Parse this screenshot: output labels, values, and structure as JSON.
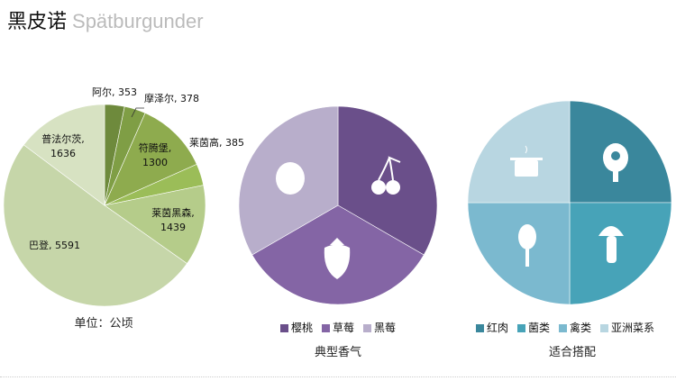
{
  "title": {
    "main": "黑皮诺",
    "sub": "Spätburgunder"
  },
  "chart_data": [
    {
      "type": "pie",
      "caption": "单位：公顷",
      "categories": [
        "阿尔",
        "摩泽尔",
        "符腾堡",
        "莱茵高",
        "莱茵黑森",
        "巴登",
        "普法尔茨"
      ],
      "values": [
        353,
        378,
        1300,
        385,
        1439,
        5591,
        1636
      ],
      "colors": [
        "#6e8a3c",
        "#7f9e45",
        "#8eab4e",
        "#9bbd58",
        "#b5cc8a",
        "#c6d6a9",
        "#d7e2c2"
      ],
      "labels": [
        "阿尔, 353",
        "摩泽尔, 378",
        "符腾堡,\n1300",
        "莱茵高, 385",
        "莱茵黑森,\n1439",
        "巴登, 5591",
        "普法尔茨,\n1636"
      ]
    },
    {
      "type": "pie",
      "caption": "典型香气",
      "categories": [
        "樱桃",
        "草莓",
        "黑莓"
      ],
      "values": [
        1,
        1,
        1
      ],
      "colors": [
        "#6a4f8a",
        "#8465a5",
        "#b8aecb"
      ],
      "icons": [
        "cherry-icon",
        "strawberry-icon",
        "blackberry-icon"
      ]
    },
    {
      "type": "pie",
      "caption": "适合搭配",
      "categories": [
        "红肉",
        "菌类",
        "禽类",
        "亚洲菜系"
      ],
      "values": [
        1,
        1,
        1,
        1
      ],
      "colors": [
        "#3a879c",
        "#47a3b8",
        "#7bb9cf",
        "#b8d6e1"
      ],
      "icons": [
        "ham-icon",
        "mushroom-icon",
        "drumstick-icon",
        "pot-icon"
      ]
    }
  ]
}
